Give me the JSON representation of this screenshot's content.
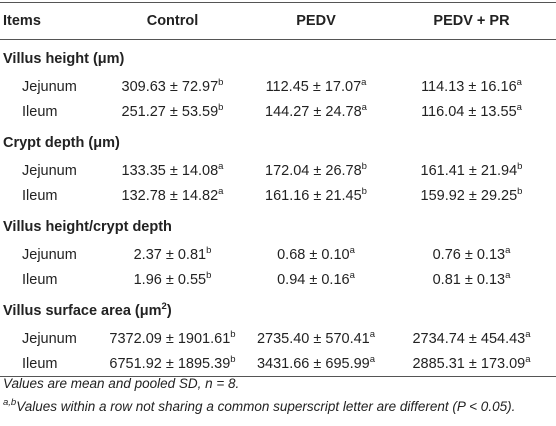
{
  "table": {
    "header": [
      "Items",
      "Control",
      "PEDV",
      "PEDV + PR"
    ],
    "sections": [
      {
        "title": {
          "text": "Villus height (μm)"
        },
        "rows": [
          {
            "label": "Jejunum",
            "cells": [
              {
                "text": "309.63 ± 72.97",
                "sup": "b"
              },
              {
                "text": "112.45 ± 17.07",
                "sup": "a"
              },
              {
                "text": "114.13 ± 16.16",
                "sup": "a"
              }
            ]
          },
          {
            "label": "Ileum",
            "cells": [
              {
                "text": "251.27 ± 53.59",
                "sup": "b"
              },
              {
                "text": "144.27 ± 24.78",
                "sup": "a"
              },
              {
                "text": "116.04 ± 13.55",
                "sup": "a"
              }
            ]
          }
        ]
      },
      {
        "title": {
          "text": "Crypt depth (μm)"
        },
        "rows": [
          {
            "label": "Jejunum",
            "cells": [
              {
                "text": "133.35 ± 14.08",
                "sup": "a"
              },
              {
                "text": "172.04 ± 26.78",
                "sup": "b"
              },
              {
                "text": "161.41 ± 21.94",
                "sup": "b"
              }
            ]
          },
          {
            "label": "Ileum",
            "cells": [
              {
                "text": "132.78 ± 14.82",
                "sup": "a"
              },
              {
                "text": "161.16 ± 21.45",
                "sup": "b"
              },
              {
                "text": "159.92 ± 29.25",
                "sup": "b"
              }
            ]
          }
        ]
      },
      {
        "title": {
          "text": "Villus height/crypt depth"
        },
        "rows": [
          {
            "label": "Jejunum",
            "cells": [
              {
                "text": "2.37 ± 0.81",
                "sup": "b"
              },
              {
                "text": "0.68 ± 0.10",
                "sup": "a"
              },
              {
                "text": "0.76 ± 0.13",
                "sup": "a"
              }
            ]
          },
          {
            "label": "Ileum",
            "cells": [
              {
                "text": "1.96 ± 0.55",
                "sup": "b"
              },
              {
                "text": "0.94 ± 0.16",
                "sup": "a"
              },
              {
                "text": "0.81 ± 0.13",
                "sup": "a"
              }
            ]
          }
        ]
      },
      {
        "title": {
          "text": "Villus surface area (μm",
          "sup": "2",
          "after": ")"
        },
        "rows": [
          {
            "label": "Jejunum",
            "cells": [
              {
                "text": "7372.09 ± 1901.61",
                "sup": "b"
              },
              {
                "text": "2735.40 ± 570.41",
                "sup": "a"
              },
              {
                "text": "2734.74 ± 454.43",
                "sup": "a"
              }
            ]
          },
          {
            "label": "Ileum",
            "cells": [
              {
                "text": "6751.92 ± 1895.39",
                "sup": "b"
              },
              {
                "text": "3431.66 ± 695.99",
                "sup": "a"
              },
              {
                "text": "2885.31 ± 173.09",
                "sup": "a"
              }
            ]
          }
        ]
      }
    ],
    "footnotes": [
      {
        "text": "Values are mean and pooled SD, n = 8."
      },
      {
        "sup": "a,b",
        "text": "Values within a row not sharing a common superscript letter are different (P < 0.05)."
      }
    ]
  }
}
